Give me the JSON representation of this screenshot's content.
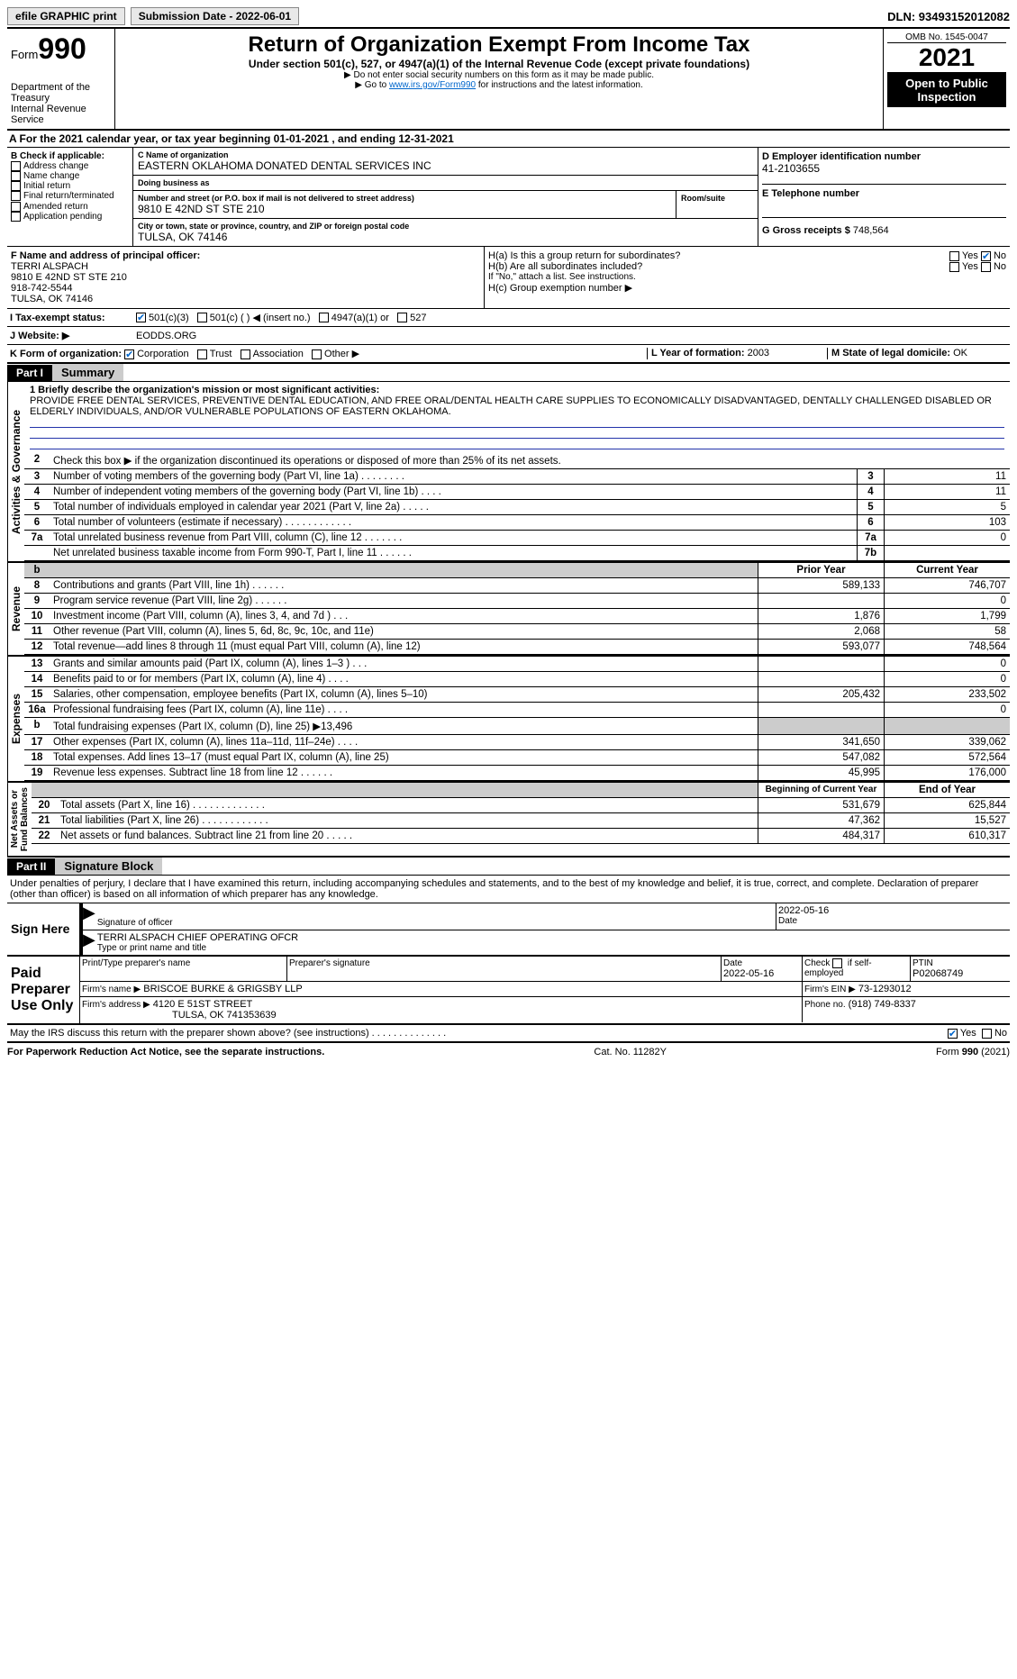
{
  "topbar": {
    "efile": "efile GRAPHIC print",
    "submission_label": "Submission Date - 2022-06-01",
    "dln": "DLN: 93493152012082"
  },
  "header": {
    "form_word": "Form",
    "form_num": "990",
    "title": "Return of Organization Exempt From Income Tax",
    "subtitle": "Under section 501(c), 527, or 4947(a)(1) of the Internal Revenue Code (except private foundations)",
    "note1": "▶ Do not enter social security numbers on this form as it may be made public.",
    "note2_pre": "▶ Go to ",
    "note2_link": "www.irs.gov/Form990",
    "note2_post": " for instructions and the latest information.",
    "dept": "Department of the Treasury\nInternal Revenue Service",
    "omb": "OMB No. 1545-0047",
    "year": "2021",
    "open": "Open to Public Inspection"
  },
  "period": "A For the 2021 calendar year, or tax year beginning 01-01-2021      , and ending 12-31-2021",
  "B": {
    "title": "B Check if applicable:",
    "items": [
      "Address change",
      "Name change",
      "Initial return",
      "Final return/terminated",
      "Amended return",
      "Application pending"
    ]
  },
  "C": {
    "name_lbl": "C Name of organization",
    "name": "EASTERN OKLAHOMA DONATED DENTAL SERVICES INC",
    "dba_lbl": "Doing business as",
    "dba": "",
    "street_lbl": "Number and street (or P.O. box if mail is not delivered to street address)",
    "street": "9810 E 42ND ST STE 210",
    "room_lbl": "Room/suite",
    "room": "",
    "city_lbl": "City or town, state or province, country, and ZIP or foreign postal code",
    "city": "TULSA, OK  74146"
  },
  "D": {
    "lbl": "D Employer identification number",
    "val": "41-2103655"
  },
  "E": {
    "lbl": "E Telephone number",
    "val": ""
  },
  "G": {
    "lbl": "G Gross receipts $",
    "val": "748,564"
  },
  "F": {
    "lbl": "F  Name and address of principal officer:",
    "name": "TERRI ALSPACH",
    "addr1": "9810 E 42ND ST STE 210",
    "addr2": "918-742-5544",
    "addr3": "TULSA, OK  74146"
  },
  "H": {
    "a": "H(a)  Is this a group return for subordinates?",
    "b": "H(b)  Are all subordinates included?",
    "bnote": "If \"No,\" attach a list. See instructions.",
    "c": "H(c)  Group exemption number ▶",
    "yes": "Yes",
    "no": "No"
  },
  "I": {
    "lbl": "I   Tax-exempt status:",
    "opts": [
      "501(c)(3)",
      "501(c) (  ) ◀ (insert no.)",
      "4947(a)(1) or",
      "527"
    ]
  },
  "J": {
    "lbl": "J   Website: ▶",
    "val": "EODDS.ORG"
  },
  "K": {
    "lbl": "K Form of organization:",
    "opts": [
      "Corporation",
      "Trust",
      "Association",
      "Other ▶"
    ]
  },
  "L": {
    "lbl": "L Year of formation:",
    "val": "2003"
  },
  "M": {
    "lbl": "M State of legal domicile:",
    "val": "OK"
  },
  "part1": {
    "tag": "Part I",
    "title": "Summary"
  },
  "summary": {
    "q1_lbl": "1   Briefly describe the organization's mission or most significant activities:",
    "q1": "PROVIDE FREE DENTAL SERVICES, PREVENTIVE DENTAL EDUCATION, AND FREE ORAL/DENTAL HEALTH CARE SUPPLIES TO ECONOMICALLY DISADVANTAGED, DENTALLY CHALLENGED DISABLED OR ELDERLY INDIVIDUALS, AND/OR VULNERABLE POPULATIONS OF EASTERN OKLAHOMA.",
    "q2": "Check this box ▶      if the organization discontinued its operations or disposed of more than 25% of its net assets.",
    "rows_top": [
      {
        "n": "3",
        "t": "Number of voting members of the governing body (Part VI, line 1a)  .  .  .  .  .  .  .  .",
        "b": "3",
        "v": "11"
      },
      {
        "n": "4",
        "t": "Number of independent voting members of the governing body (Part VI, line 1b)   .  .  .  .",
        "b": "4",
        "v": "11"
      },
      {
        "n": "5",
        "t": "Total number of individuals employed in calendar year 2021 (Part V, line 2a)  .  .  .  .  .",
        "b": "5",
        "v": "5"
      },
      {
        "n": "6",
        "t": "Total number of volunteers (estimate if necessary)  .  .  .  .  .  .  .  .  .  .  .  .",
        "b": "6",
        "v": "103"
      },
      {
        "n": "7a",
        "t": "Total unrelated business revenue from Part VIII, column (C), line 12  .  .  .  .  .  .  .",
        "b": "7a",
        "v": "0"
      },
      {
        "n": "",
        "t": "Net unrelated business taxable income from Form 990-T, Part I, line 11   .  .  .  .  .  .",
        "b": "7b",
        "v": ""
      }
    ],
    "col_prior": "Prior Year",
    "col_curr": "Current Year",
    "rev": [
      {
        "n": "8",
        "t": "Contributions and grants (Part VIII, line 1h)  .  .  .  .  .  .",
        "p": "589,133",
        "c": "746,707"
      },
      {
        "n": "9",
        "t": "Program service revenue (Part VIII, line 2g)  .  .  .  .  .  .",
        "p": "",
        "c": "0"
      },
      {
        "n": "10",
        "t": "Investment income (Part VIII, column (A), lines 3, 4, and 7d )  .  .  .",
        "p": "1,876",
        "c": "1,799"
      },
      {
        "n": "11",
        "t": "Other revenue (Part VIII, column (A), lines 5, 6d, 8c, 9c, 10c, and 11e)",
        "p": "2,068",
        "c": "58"
      },
      {
        "n": "12",
        "t": "Total revenue—add lines 8 through 11 (must equal Part VIII, column (A), line 12)",
        "p": "593,077",
        "c": "748,564"
      }
    ],
    "exp": [
      {
        "n": "13",
        "t": "Grants and similar amounts paid (Part IX, column (A), lines 1–3 ) .  .  .",
        "p": "",
        "c": "0"
      },
      {
        "n": "14",
        "t": "Benefits paid to or for members (Part IX, column (A), line 4)  .  .  .  .",
        "p": "",
        "c": "0"
      },
      {
        "n": "15",
        "t": "Salaries, other compensation, employee benefits (Part IX, column (A), lines 5–10)",
        "p": "205,432",
        "c": "233,502"
      },
      {
        "n": "16a",
        "t": "Professional fundraising fees (Part IX, column (A), line 11e)  .  .  .  .",
        "p": "",
        "c": "0"
      },
      {
        "n": "b",
        "t": "Total fundraising expenses (Part IX, column (D), line 25) ▶13,496",
        "p": "grey",
        "c": "grey"
      },
      {
        "n": "17",
        "t": "Other expenses (Part IX, column (A), lines 11a–11d, 11f–24e)  .  .  .  .",
        "p": "341,650",
        "c": "339,062"
      },
      {
        "n": "18",
        "t": "Total expenses. Add lines 13–17 (must equal Part IX, column (A), line 25)",
        "p": "547,082",
        "c": "572,564"
      },
      {
        "n": "19",
        "t": "Revenue less expenses. Subtract line 18 from line 12  .  .  .  .  .  .",
        "p": "45,995",
        "c": "176,000"
      }
    ],
    "col_begin": "Beginning of Current Year",
    "col_end": "End of Year",
    "net": [
      {
        "n": "20",
        "t": "Total assets (Part X, line 16)  .  .  .  .  .  .  .  .  .  .  .  .  .",
        "p": "531,679",
        "c": "625,844"
      },
      {
        "n": "21",
        "t": "Total liabilities (Part X, line 26)  .  .  .  .  .  .  .  .  .  .  .  .",
        "p": "47,362",
        "c": "15,527"
      },
      {
        "n": "22",
        "t": "Net assets or fund balances. Subtract line 21 from line 20  .  .  .  .  .",
        "p": "484,317",
        "c": "610,317"
      }
    ],
    "side_gov": "Activities & Governance",
    "side_rev": "Revenue",
    "side_exp": "Expenses",
    "side_net": "Net Assets or\nFund Balances"
  },
  "part2": {
    "tag": "Part II",
    "title": "Signature Block"
  },
  "sig": {
    "perjury": "Under penalties of perjury, I declare that I have examined this return, including accompanying schedules and statements, and to the best of my knowledge and belief, it is true, correct, and complete. Declaration of preparer (other than officer) is based on all information of which preparer has any knowledge.",
    "sign_here": "Sign Here",
    "sig_off": "Signature of officer",
    "date_lbl": "Date",
    "date": "2022-05-16",
    "typed": "TERRI ALSPACH  CHIEF OPERATING OFCR",
    "typed_lbl": "Type or print name and title",
    "paid": "Paid Preparer Use Only",
    "pname_lbl": "Print/Type preparer's name",
    "pname": "",
    "psig_lbl": "Preparer's signature",
    "psig": "",
    "pdate_lbl": "Date",
    "pdate": "2022-05-16",
    "pself": "Check        if self-employed",
    "ptin_lbl": "PTIN",
    "ptin": "P02068749",
    "firm_lbl": "Firm's name    ▶",
    "firm": "BRISCOE BURKE & GRIGSBY LLP",
    "fein_lbl": "Firm's EIN ▶",
    "fein": "73-1293012",
    "faddr_lbl": "Firm's address ▶",
    "faddr1": "4120 E 51ST STREET",
    "faddr2": "TULSA, OK  741353639",
    "fphone_lbl": "Phone no.",
    "fphone": "(918) 749-8337",
    "discuss": "May the IRS discuss this return with the preparer shown above? (see instructions)  .  .  .  .  .  .  .  .  .  .  .  .  .  .",
    "yes": "Yes",
    "no": "No"
  },
  "footer": {
    "left": "For Paperwork Reduction Act Notice, see the separate instructions.",
    "mid": "Cat. No. 11282Y",
    "right": "Form 990 (2021)"
  }
}
